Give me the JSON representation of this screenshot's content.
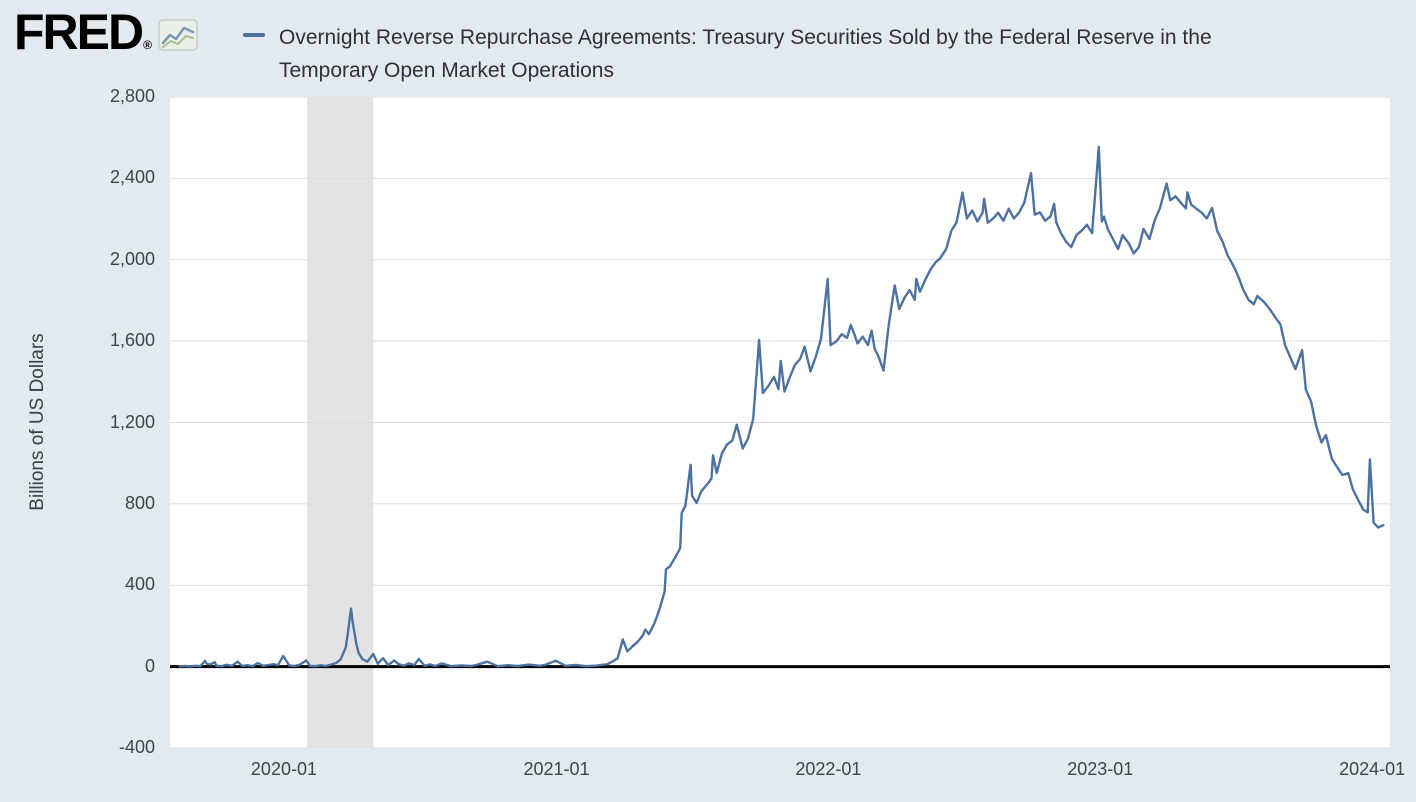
{
  "header": {
    "logo_text": "FRED",
    "registered_mark": "®",
    "title_line1": "Overnight Reverse Repurchase Agreements: Treasury Securities Sold by the Federal Reserve in the",
    "title_line2": "Temporary Open Market Operations"
  },
  "chart_data": {
    "type": "line",
    "title": "Overnight Reverse Repurchase Agreements: Treasury Securities Sold by the Federal Reserve in the Temporary Open Market Operations",
    "xlabel": "",
    "ylabel": "Billions of US Dollars",
    "ylim": [
      -400,
      2800
    ],
    "grid": true,
    "legend_position": "top",
    "line_color": "#4d72a0",
    "zero_line_color": "#000000",
    "grid_color": "#d9dee5",
    "recession_band_color": "#e3e3e3",
    "plot_bg": "#ffffff",
    "page_bg": "#e3e9f0",
    "x_domain": [
      "2019-08-01",
      "2024-01-25"
    ],
    "yticks": [
      {
        "value": 2800,
        "label": "2,800"
      },
      {
        "value": 2400,
        "label": "2,400"
      },
      {
        "value": 2000,
        "label": "2,000"
      },
      {
        "value": 1600,
        "label": "1,600"
      },
      {
        "value": 1200,
        "label": "1,200"
      },
      {
        "value": 800,
        "label": "800"
      },
      {
        "value": 400,
        "label": "400"
      },
      {
        "value": 0,
        "label": "0"
      },
      {
        "value": -400,
        "label": "-400"
      }
    ],
    "xticks": [
      {
        "date": "2020-01-01",
        "label": "2020-01"
      },
      {
        "date": "2021-01-01",
        "label": "2021-01"
      },
      {
        "date": "2022-01-01",
        "label": "2022-01"
      },
      {
        "date": "2023-01-01",
        "label": "2023-01"
      },
      {
        "date": "2024-01-01",
        "label": "2024-01"
      }
    ],
    "recession_bands": [
      {
        "start": "2020-02-01",
        "end": "2020-04-30"
      }
    ],
    "series": [
      {
        "name": "Overnight Reverse Repurchase Agreements: Treasury Securities Sold by the Federal Reserve in the Temporary Open Market Operations",
        "units": "Billions of US Dollars",
        "points": [
          [
            "2019-08-14",
            1
          ],
          [
            "2019-08-21",
            3
          ],
          [
            "2019-08-28",
            1
          ],
          [
            "2019-09-04",
            4
          ],
          [
            "2019-09-11",
            2
          ],
          [
            "2019-09-17",
            28
          ],
          [
            "2019-09-19",
            15
          ],
          [
            "2019-09-24",
            10
          ],
          [
            "2019-09-30",
            22
          ],
          [
            "2019-10-02",
            5
          ],
          [
            "2019-10-09",
            2
          ],
          [
            "2019-10-16",
            9
          ],
          [
            "2019-10-23",
            4
          ],
          [
            "2019-10-31",
            24
          ],
          [
            "2019-11-06",
            3
          ],
          [
            "2019-11-13",
            7
          ],
          [
            "2019-11-20",
            2
          ],
          [
            "2019-11-27",
            18
          ],
          [
            "2019-12-04",
            4
          ],
          [
            "2019-12-11",
            8
          ],
          [
            "2019-12-18",
            12
          ],
          [
            "2019-12-24",
            7
          ],
          [
            "2019-12-31",
            52
          ],
          [
            "2020-01-08",
            6
          ],
          [
            "2020-01-15",
            3
          ],
          [
            "2020-01-22",
            9
          ],
          [
            "2020-01-31",
            30
          ],
          [
            "2020-02-05",
            4
          ],
          [
            "2020-02-12",
            2
          ],
          [
            "2020-02-19",
            7
          ],
          [
            "2020-02-26",
            3
          ],
          [
            "2020-03-04",
            10
          ],
          [
            "2020-03-11",
            18
          ],
          [
            "2020-03-17",
            35
          ],
          [
            "2020-03-20",
            60
          ],
          [
            "2020-03-24",
            95
          ],
          [
            "2020-03-27",
            170
          ],
          [
            "2020-03-31",
            285
          ],
          [
            "2020-04-02",
            225
          ],
          [
            "2020-04-07",
            115
          ],
          [
            "2020-04-10",
            70
          ],
          [
            "2020-04-15",
            38
          ],
          [
            "2020-04-22",
            24
          ],
          [
            "2020-04-30",
            62
          ],
          [
            "2020-05-06",
            14
          ],
          [
            "2020-05-13",
            42
          ],
          [
            "2020-05-20",
            8
          ],
          [
            "2020-05-28",
            30
          ],
          [
            "2020-06-03",
            12
          ],
          [
            "2020-06-10",
            5
          ],
          [
            "2020-06-17",
            16
          ],
          [
            "2020-06-24",
            8
          ],
          [
            "2020-06-30",
            38
          ],
          [
            "2020-07-08",
            4
          ],
          [
            "2020-07-15",
            11
          ],
          [
            "2020-07-22",
            3
          ],
          [
            "2020-07-31",
            16
          ],
          [
            "2020-08-12",
            2
          ],
          [
            "2020-08-26",
            6
          ],
          [
            "2020-09-09",
            3
          ],
          [
            "2020-09-16",
            9
          ],
          [
            "2020-09-30",
            24
          ],
          [
            "2020-10-14",
            2
          ],
          [
            "2020-10-28",
            7
          ],
          [
            "2020-11-10",
            3
          ],
          [
            "2020-11-25",
            10
          ],
          [
            "2020-12-09",
            4
          ],
          [
            "2020-12-16",
            8
          ],
          [
            "2020-12-31",
            29
          ],
          [
            "2021-01-13",
            4
          ],
          [
            "2021-01-27",
            8
          ],
          [
            "2021-02-10",
            2
          ],
          [
            "2021-02-24",
            5
          ],
          [
            "2021-03-10",
            12
          ],
          [
            "2021-03-17",
            25
          ],
          [
            "2021-03-24",
            41
          ],
          [
            "2021-03-31",
            134
          ],
          [
            "2021-04-06",
            75
          ],
          [
            "2021-04-13",
            100
          ],
          [
            "2021-04-20",
            122
          ],
          [
            "2021-04-27",
            155
          ],
          [
            "2021-04-30",
            182
          ],
          [
            "2021-05-05",
            160
          ],
          [
            "2021-05-12",
            209
          ],
          [
            "2021-05-19",
            278
          ],
          [
            "2021-05-26",
            369
          ],
          [
            "2021-05-28",
            479
          ],
          [
            "2021-06-02",
            492
          ],
          [
            "2021-06-09",
            535
          ],
          [
            "2021-06-16",
            583
          ],
          [
            "2021-06-18",
            755
          ],
          [
            "2021-06-23",
            791
          ],
          [
            "2021-06-30",
            992
          ],
          [
            "2021-07-02",
            840
          ],
          [
            "2021-07-08",
            805
          ],
          [
            "2021-07-14",
            860
          ],
          [
            "2021-07-21",
            891
          ],
          [
            "2021-07-28",
            924
          ],
          [
            "2021-07-30",
            1039
          ],
          [
            "2021-08-04",
            952
          ],
          [
            "2021-08-11",
            1048
          ],
          [
            "2021-08-18",
            1092
          ],
          [
            "2021-08-25",
            1111
          ],
          [
            "2021-08-31",
            1189
          ],
          [
            "2021-09-08",
            1072
          ],
          [
            "2021-09-15",
            1121
          ],
          [
            "2021-09-22",
            1218
          ],
          [
            "2021-09-30",
            1605
          ],
          [
            "2021-10-05",
            1345
          ],
          [
            "2021-10-13",
            1383
          ],
          [
            "2021-10-20",
            1424
          ],
          [
            "2021-10-26",
            1364
          ],
          [
            "2021-10-29",
            1503
          ],
          [
            "2021-11-03",
            1352
          ],
          [
            "2021-11-10",
            1421
          ],
          [
            "2021-11-17",
            1483
          ],
          [
            "2021-11-24",
            1512
          ],
          [
            "2021-11-30",
            1572
          ],
          [
            "2021-12-08",
            1451
          ],
          [
            "2021-12-15",
            1524
          ],
          [
            "2021-12-22",
            1612
          ],
          [
            "2021-12-31",
            1905
          ],
          [
            "2022-01-04",
            1580
          ],
          [
            "2022-01-12",
            1600
          ],
          [
            "2022-01-19",
            1634
          ],
          [
            "2022-01-26",
            1616
          ],
          [
            "2022-01-31",
            1679
          ],
          [
            "2022-02-04",
            1643
          ],
          [
            "2022-02-09",
            1589
          ],
          [
            "2022-02-16",
            1622
          ],
          [
            "2022-02-23",
            1581
          ],
          [
            "2022-02-28",
            1651
          ],
          [
            "2022-03-04",
            1563
          ],
          [
            "2022-03-09",
            1527
          ],
          [
            "2022-03-16",
            1455
          ],
          [
            "2022-03-23",
            1679
          ],
          [
            "2022-03-31",
            1874
          ],
          [
            "2022-04-06",
            1758
          ],
          [
            "2022-04-13",
            1812
          ],
          [
            "2022-04-20",
            1851
          ],
          [
            "2022-04-27",
            1803
          ],
          [
            "2022-04-29",
            1906
          ],
          [
            "2022-05-04",
            1843
          ],
          [
            "2022-05-11",
            1901
          ],
          [
            "2022-05-18",
            1952
          ],
          [
            "2022-05-25",
            1988
          ],
          [
            "2022-05-31",
            2007
          ],
          [
            "2022-06-08",
            2052
          ],
          [
            "2022-06-15",
            2142
          ],
          [
            "2022-06-22",
            2183
          ],
          [
            "2022-06-30",
            2330
          ],
          [
            "2022-07-06",
            2203
          ],
          [
            "2022-07-13",
            2242
          ],
          [
            "2022-07-20",
            2188
          ],
          [
            "2022-07-27",
            2231
          ],
          [
            "2022-07-29",
            2300
          ],
          [
            "2022-08-03",
            2182
          ],
          [
            "2022-08-10",
            2202
          ],
          [
            "2022-08-17",
            2232
          ],
          [
            "2022-08-24",
            2191
          ],
          [
            "2022-08-31",
            2251
          ],
          [
            "2022-09-07",
            2203
          ],
          [
            "2022-09-14",
            2232
          ],
          [
            "2022-09-21",
            2281
          ],
          [
            "2022-09-30",
            2426
          ],
          [
            "2022-10-05",
            2222
          ],
          [
            "2022-10-12",
            2233
          ],
          [
            "2022-10-19",
            2192
          ],
          [
            "2022-10-26",
            2212
          ],
          [
            "2022-10-31",
            2275
          ],
          [
            "2022-11-03",
            2183
          ],
          [
            "2022-11-09",
            2132
          ],
          [
            "2022-11-16",
            2089
          ],
          [
            "2022-11-23",
            2062
          ],
          [
            "2022-11-30",
            2121
          ],
          [
            "2022-12-07",
            2143
          ],
          [
            "2022-12-14",
            2172
          ],
          [
            "2022-12-21",
            2131
          ],
          [
            "2022-12-30",
            2554
          ],
          [
            "2023-01-03",
            2188
          ],
          [
            "2023-01-06",
            2212
          ],
          [
            "2023-01-11",
            2151
          ],
          [
            "2023-01-18",
            2102
          ],
          [
            "2023-01-25",
            2053
          ],
          [
            "2023-01-31",
            2121
          ],
          [
            "2023-02-08",
            2082
          ],
          [
            "2023-02-15",
            2031
          ],
          [
            "2023-02-22",
            2063
          ],
          [
            "2023-02-28",
            2152
          ],
          [
            "2023-03-08",
            2102
          ],
          [
            "2023-03-15",
            2192
          ],
          [
            "2023-03-22",
            2253
          ],
          [
            "2023-03-31",
            2375
          ],
          [
            "2023-04-05",
            2292
          ],
          [
            "2023-04-12",
            2312
          ],
          [
            "2023-04-19",
            2281
          ],
          [
            "2023-04-26",
            2252
          ],
          [
            "2023-04-28",
            2331
          ],
          [
            "2023-05-03",
            2272
          ],
          [
            "2023-05-10",
            2251
          ],
          [
            "2023-05-17",
            2232
          ],
          [
            "2023-05-24",
            2203
          ],
          [
            "2023-05-31",
            2255
          ],
          [
            "2023-06-07",
            2142
          ],
          [
            "2023-06-14",
            2091
          ],
          [
            "2023-06-21",
            2022
          ],
          [
            "2023-06-30",
            1962
          ],
          [
            "2023-07-06",
            1912
          ],
          [
            "2023-07-12",
            1852
          ],
          [
            "2023-07-19",
            1803
          ],
          [
            "2023-07-26",
            1781
          ],
          [
            "2023-07-31",
            1822
          ],
          [
            "2023-08-09",
            1792
          ],
          [
            "2023-08-16",
            1761
          ],
          [
            "2023-08-23",
            1722
          ],
          [
            "2023-08-31",
            1681
          ],
          [
            "2023-09-06",
            1582
          ],
          [
            "2023-09-13",
            1521
          ],
          [
            "2023-09-20",
            1462
          ],
          [
            "2023-09-29",
            1556
          ],
          [
            "2023-10-04",
            1363
          ],
          [
            "2023-10-11",
            1302
          ],
          [
            "2023-10-18",
            1181
          ],
          [
            "2023-10-25",
            1102
          ],
          [
            "2023-10-31",
            1138
          ],
          [
            "2023-11-08",
            1021
          ],
          [
            "2023-11-15",
            981
          ],
          [
            "2023-11-22",
            942
          ],
          [
            "2023-11-30",
            951
          ],
          [
            "2023-12-06",
            872
          ],
          [
            "2023-12-13",
            821
          ],
          [
            "2023-12-20",
            772
          ],
          [
            "2023-12-26",
            758
          ],
          [
            "2023-12-29",
            1018
          ],
          [
            "2024-01-03",
            708
          ],
          [
            "2024-01-09",
            684
          ],
          [
            "2024-01-16",
            695
          ]
        ]
      }
    ]
  }
}
